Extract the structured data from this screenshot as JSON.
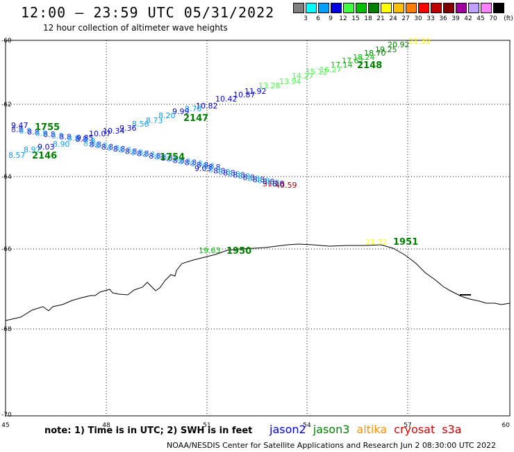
{
  "header": {
    "title": "12:00 – 23:59 UTC 05/31/2022",
    "subtitle": "12 hour collection of altimeter wave heights"
  },
  "colorbar": {
    "unit": "(ft)",
    "items": [
      {
        "color": "#808080",
        "label": "3"
      },
      {
        "color": "#00ffff",
        "label": "6"
      },
      {
        "color": "#00a0ff",
        "label": "9"
      },
      {
        "color": "#0000e0",
        "label": "12"
      },
      {
        "color": "#40ff40",
        "label": "15"
      },
      {
        "color": "#00c000",
        "label": "18"
      },
      {
        "color": "#008000",
        "label": "21"
      },
      {
        "color": "#ffff00",
        "label": "24"
      },
      {
        "color": "#ffc000",
        "label": "27"
      },
      {
        "color": "#ff8000",
        "label": "30"
      },
      {
        "color": "#ff0000",
        "label": "33"
      },
      {
        "color": "#c00000",
        "label": "36"
      },
      {
        "color": "#800000",
        "label": "39"
      },
      {
        "color": "#a000a0",
        "label": "42"
      },
      {
        "color": "#c0a0ff",
        "label": "45"
      },
      {
        "color": "#ff80ff",
        "label": "70"
      },
      {
        "color": "#000000",
        "label": ""
      }
    ]
  },
  "axes": {
    "lat_ticks": [
      "-60",
      "-62",
      "-64",
      "-66",
      "-68",
      "-70"
    ],
    "lon_ticks": [
      "45",
      "48",
      "51",
      "54",
      "57",
      "60"
    ]
  },
  "passes": [
    {
      "label": "2148",
      "color": "#008000"
    },
    {
      "label": "2147",
      "color": "#008000"
    },
    {
      "label": "1755",
      "color": "#008000"
    },
    {
      "label": "2146",
      "color": "#008000"
    },
    {
      "label": "1754",
      "color": "#008000"
    },
    {
      "label": "1950",
      "color": "#008000"
    },
    {
      "label": "1951",
      "color": "#008000"
    }
  ],
  "points": [
    {
      "text": "21.30",
      "color": "#ffff00"
    },
    {
      "text": "20.92",
      "color": "#008000"
    },
    {
      "text": "19.25",
      "color": "#008000"
    },
    {
      "text": "18.70",
      "color": "#008000"
    },
    {
      "text": "18.24",
      "color": "#00c000"
    },
    {
      "text": "17.62",
      "color": "#00c000"
    },
    {
      "text": "17.14",
      "color": "#00c000"
    },
    {
      "text": "16.27",
      "color": "#40ff40"
    },
    {
      "text": "15.12",
      "color": "#40ff40"
    },
    {
      "text": "14.27",
      "color": "#40ff40"
    },
    {
      "text": "13.94",
      "color": "#40ff40"
    },
    {
      "text": "13.28",
      "color": "#40ff40"
    },
    {
      "text": "11.92",
      "color": "#0000e0"
    },
    {
      "text": "10.87",
      "color": "#0000e0"
    },
    {
      "text": "10.42",
      "color": "#0000e0"
    },
    {
      "text": "10.82",
      "color": "#0000e0"
    },
    {
      "text": "9.99",
      "color": "#0000e0"
    },
    {
      "text": "8.78",
      "color": "#00a0ff"
    },
    {
      "text": "8.20",
      "color": "#00a0ff"
    },
    {
      "text": "8.73",
      "color": "#00a0ff"
    },
    {
      "text": "8.56",
      "color": "#00a0ff"
    },
    {
      "text": "9.36",
      "color": "#0000e0"
    },
    {
      "text": "10.34",
      "color": "#0000e0"
    },
    {
      "text": "10.07",
      "color": "#0000e0"
    },
    {
      "text": "9.85",
      "color": "#0000e0"
    },
    {
      "text": "9.47",
      "color": "#0000e0"
    },
    {
      "text": "8.57",
      "color": "#00a0ff"
    },
    {
      "text": "8.97",
      "color": "#00a0ff"
    },
    {
      "text": "9.03",
      "color": "#0000e0"
    },
    {
      "text": "8.90",
      "color": "#00a0ff"
    },
    {
      "text": "9.03",
      "color": "#0000e0"
    },
    {
      "text": "31.10",
      "color": "#ff0000"
    },
    {
      "text": "40.59",
      "color": "#a00000"
    },
    {
      "text": "19.63",
      "color": "#00c000"
    },
    {
      "text": "21.72",
      "color": "#ffff00"
    }
  ],
  "missions": [
    {
      "name": "jason2",
      "color": "#0000e0"
    },
    {
      "name": "jason3",
      "color": "#008000"
    },
    {
      "name": "altika",
      "color": "#ff9000"
    },
    {
      "name": "cryosat",
      "color": "#e00000"
    },
    {
      "name": "s3a",
      "color": "#c00000"
    }
  ],
  "footer": {
    "note": "note:  1) Time is in UTC; 2) SWH is in feet",
    "credit": "NOAA/NESDIS Center for Satellite Applications and Research     Jun  2 08:30:00 UTC 2022"
  }
}
